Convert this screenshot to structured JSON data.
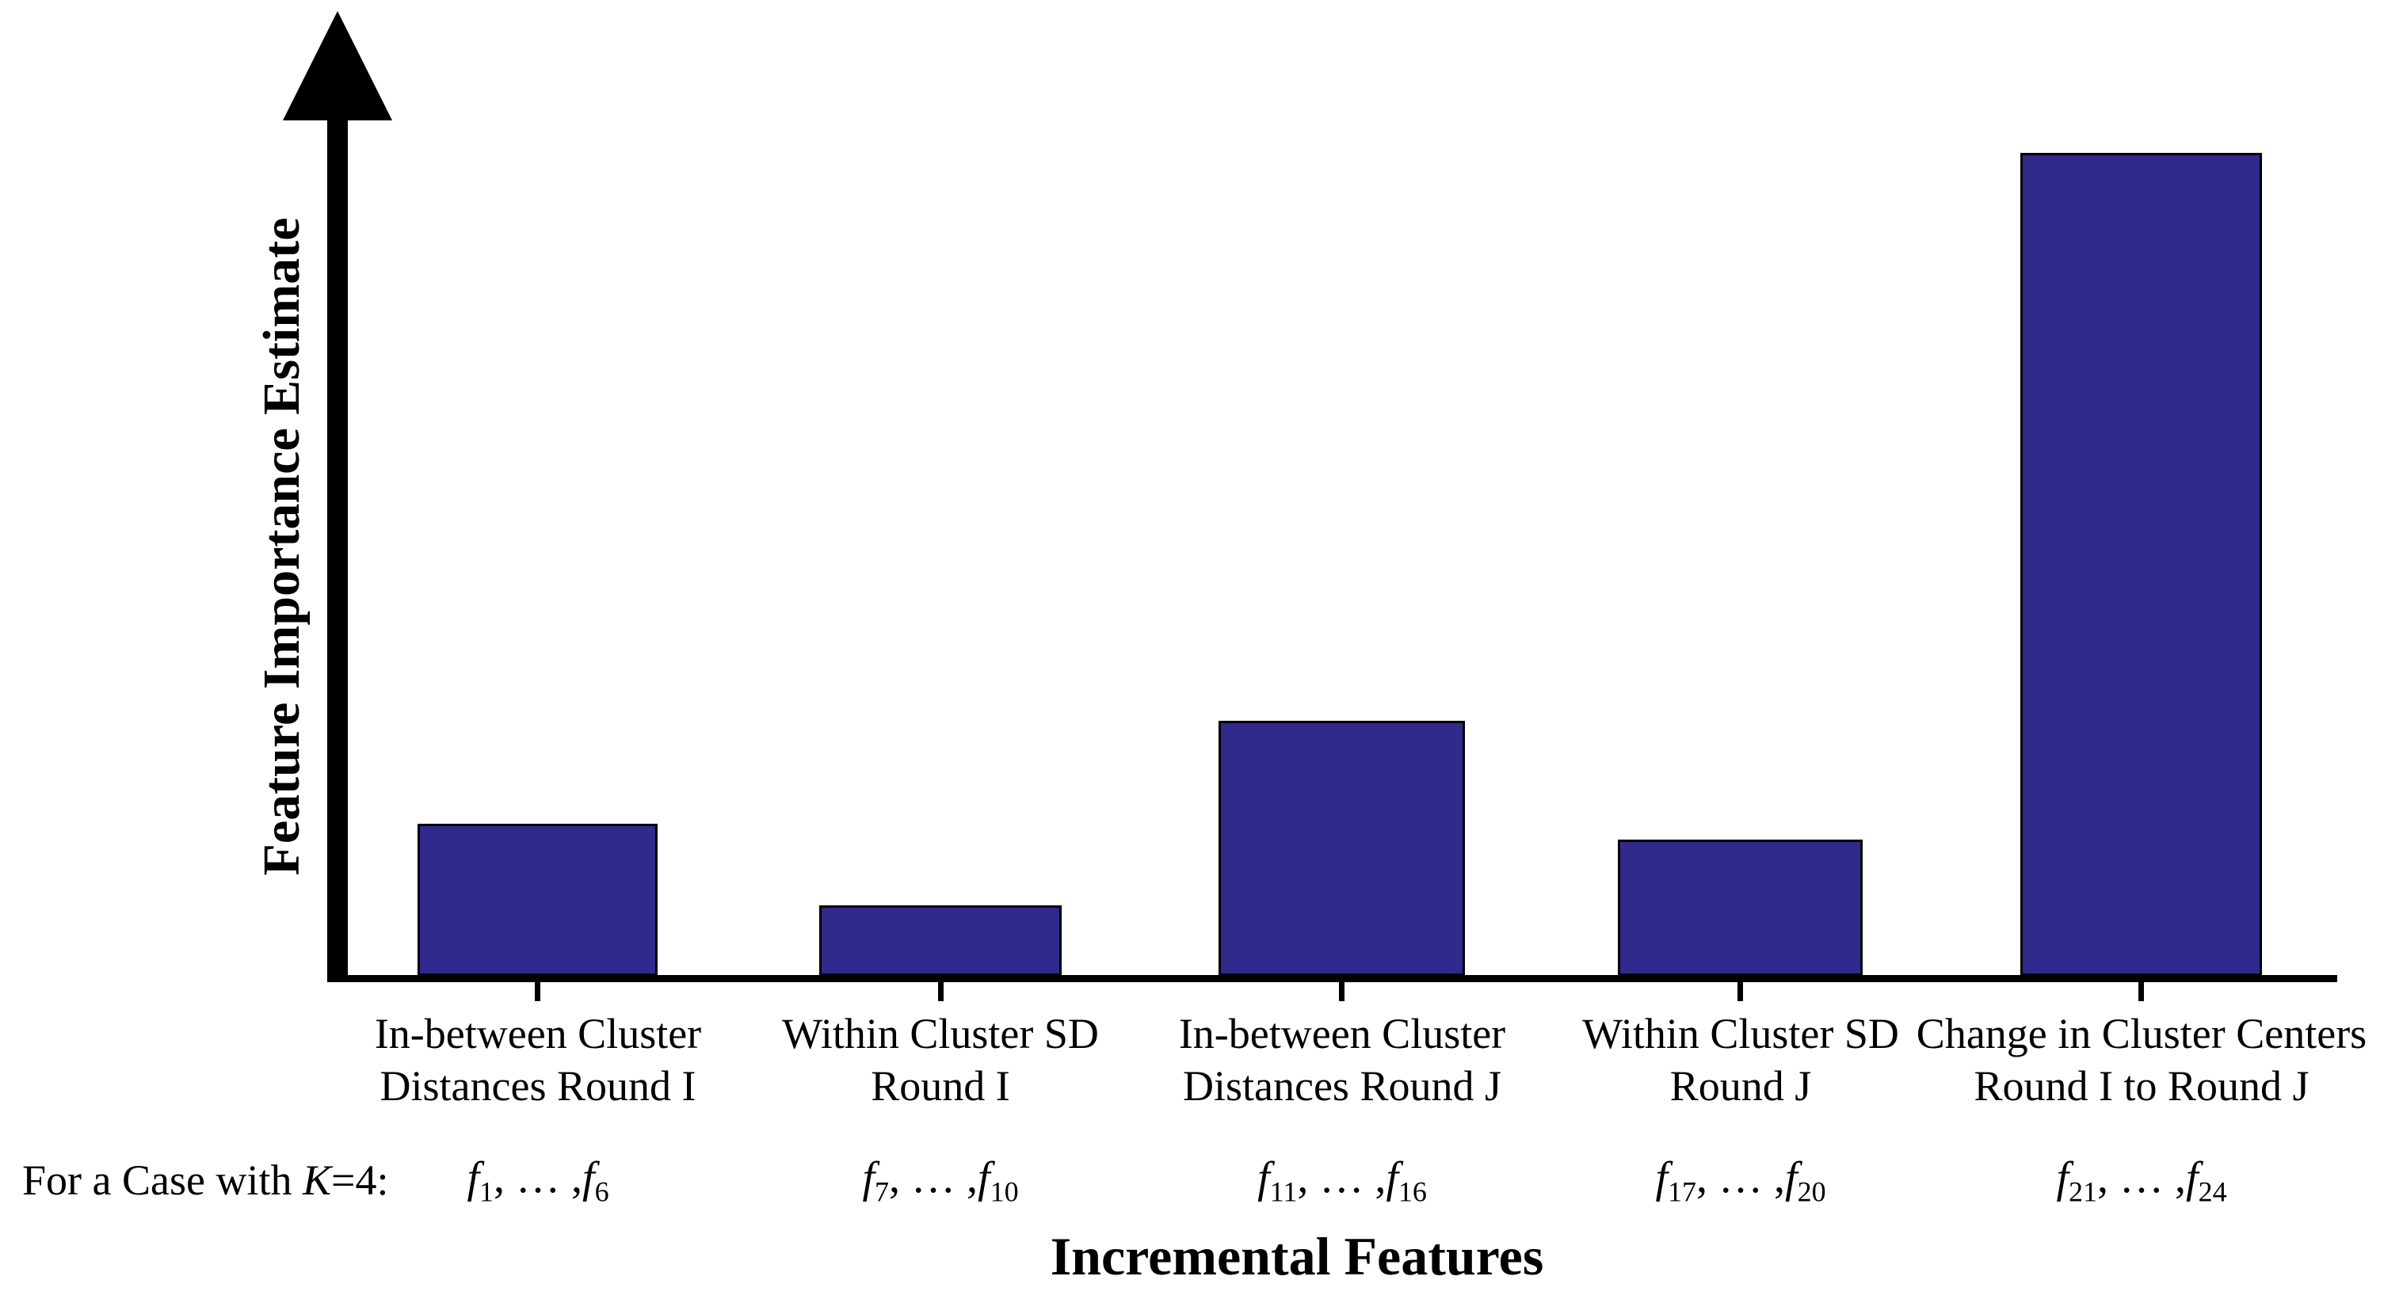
{
  "figure": {
    "y_axis_title": "Feature Importance Estimate",
    "x_axis_title": "Incremental Features",
    "case_note": {
      "prefix": "For a Case with ",
      "variable": "K",
      "suffix": "=4:"
    },
    "colors": {
      "bar_fill": "#2f2a8c",
      "bar_border": "#000000",
      "axis": "#000000",
      "text": "#000000",
      "background": "#ffffff"
    }
  },
  "chart_data": {
    "type": "bar",
    "title": "",
    "xlabel": "Incremental Features",
    "ylabel": "Feature Importance Estimate",
    "y_axis_tick_labels": "none (conceptual, unlabeled importance axis with arrow)",
    "categories": [
      {
        "line1": "In-between Cluster",
        "line2": "Distances Round I"
      },
      {
        "line1": "Within Cluster SD",
        "line2": "Round I"
      },
      {
        "line1": "In-between Cluster",
        "line2": "Distances Round J"
      },
      {
        "line1": "Within Cluster SD",
        "line2": "Round J"
      },
      {
        "line1": "Change in Cluster Centers",
        "line2": "Round I to Round J"
      }
    ],
    "feature_ranges": [
      {
        "var": "f",
        "from": "1",
        "to": "6"
      },
      {
        "var": "f",
        "from": "7",
        "to": "10"
      },
      {
        "var": "f",
        "from": "11",
        "to": "16"
      },
      {
        "var": "f",
        "from": "17",
        "to": "20"
      },
      {
        "var": "f",
        "from": "21",
        "to": "24"
      }
    ],
    "range_separator": ", … ,",
    "values": [
      0.185,
      0.086,
      0.31,
      0.166,
      1.0
    ],
    "ylim": [
      0,
      1.06
    ],
    "grid": false,
    "legend": false,
    "bar_color": "#2f2a8c"
  }
}
